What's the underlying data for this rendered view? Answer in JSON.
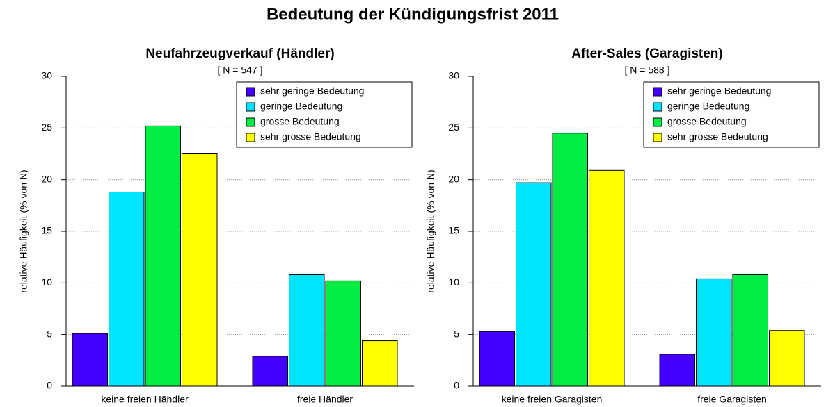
{
  "title": "Bedeutung der Kündigungsfrist 2011",
  "chart_data": [
    {
      "type": "bar",
      "title": "Neufahrzeugverkauf (Händler)",
      "subtitle": "[ N =  547 ]",
      "ylabel": "relative Häufigkeit (% von N)",
      "categories": [
        "keine freien Händler",
        "freie Händler"
      ],
      "series": [
        {
          "name": "sehr geringe Bedeutung",
          "color": "#4400ff",
          "values": [
            5.1,
            2.9
          ]
        },
        {
          "name": "geringe Bedeutung",
          "color": "#00e5ff",
          "values": [
            18.8,
            10.8
          ]
        },
        {
          "name": "grosse Bedeutung",
          "color": "#00ee44",
          "values": [
            25.2,
            10.2
          ]
        },
        {
          "name": "sehr grosse Bedeutung",
          "color": "#ffff00",
          "values": [
            22.5,
            4.4
          ]
        }
      ],
      "ylim": [
        0,
        30
      ],
      "yticks": [
        0,
        5,
        10,
        15,
        20,
        25,
        30
      ],
      "grid": true,
      "legend": "upper right"
    },
    {
      "type": "bar",
      "title": "After-Sales (Garagisten)",
      "subtitle": "[ N =  588 ]",
      "ylabel": "relative Häufigkeit (% von N)",
      "categories": [
        "keine freien Garagisten",
        "freie Garagisten"
      ],
      "series": [
        {
          "name": "sehr geringe Bedeutung",
          "color": "#4400ff",
          "values": [
            5.3,
            3.1
          ]
        },
        {
          "name": "geringe Bedeutung",
          "color": "#00e5ff",
          "values": [
            19.7,
            10.4
          ]
        },
        {
          "name": "grosse Bedeutung",
          "color": "#00ee44",
          "values": [
            24.5,
            10.8
          ]
        },
        {
          "name": "sehr grosse Bedeutung",
          "color": "#ffff00",
          "values": [
            20.9,
            5.4
          ]
        }
      ],
      "ylim": [
        0,
        30
      ],
      "yticks": [
        0,
        5,
        10,
        15,
        20,
        25,
        30
      ],
      "grid": true,
      "legend": "upper right"
    }
  ]
}
